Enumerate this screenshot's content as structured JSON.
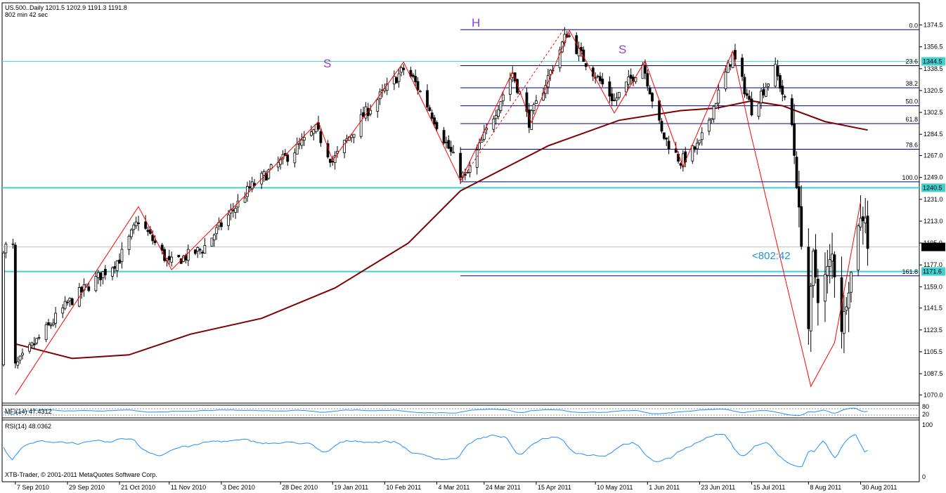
{
  "header": {
    "symbol_line": "US.500..Daily  1201.5 1202.9 1191.3 1191.8",
    "timer_line": "802 min 42 sec"
  },
  "footer": {
    "copyright": "XTB-Trader, © 2001-2011 MetaQuotes Software Corp."
  },
  "countdown": "<802:42",
  "pattern_labels": [
    "S",
    "H",
    "S"
  ],
  "price_axis": {
    "ticks": [
      "1374.5",
      "1356.5",
      "1338.5",
      "1320.5",
      "1302.5",
      "1284.5",
      "1267.0",
      "1249.0",
      "1231.0",
      "1213.0",
      "1195.0",
      "1177.0",
      "1159.0",
      "1141.5",
      "1123.5",
      "1105.5",
      "1087.5",
      "1070.0"
    ],
    "current_price": "1191.8",
    "levels": [
      "1344.5",
      "1240.5",
      "1171.6"
    ]
  },
  "fib_labels": [
    "0.0",
    "23.6",
    "38.2",
    "50.0",
    "61.8",
    "78.6",
    "100.0",
    "161.8"
  ],
  "date_axis": [
    "7 Sep 2010",
    "29 Sep 2010",
    "21 Oct 2010",
    "11 Nov 2010",
    "3 Dec 2010",
    "28 Dec 2010",
    "19 Jan 2011",
    "10 Feb 2011",
    "4 Mar 2011",
    "24 Mar 2011",
    "15 Apr 2011",
    "10 May 2011",
    "1 Jun 2011",
    "23 Jun 2011",
    "15 Jul 2011",
    "8 Aug 2011",
    "30 Aug 2011"
  ],
  "mfi": {
    "label": "MFI(14) 47.4312",
    "ticks": [
      "80",
      "20"
    ]
  },
  "rsi": {
    "label": "RSI(14) 48.0362",
    "ticks": [
      "100",
      "0"
    ]
  },
  "colors": {
    "candle": "#000000",
    "ma": "#800000",
    "zigzag": "#ff0000",
    "level": "#40d0d0",
    "fib": "#000080",
    "pattern": "#9040d0",
    "indicator": "#1e90ff",
    "countdown": "#2090e0",
    "price_box": "#000000"
  },
  "chart_data": {
    "type": "candlestick",
    "series": [
      {
        "name": "US.500..Daily",
        "waypoints": [
          [
            "2010-09-07",
            1093
          ],
          [
            "2010-09-29",
            1145
          ],
          [
            "2010-10-21",
            1182
          ],
          [
            "2010-10-29",
            1214
          ],
          [
            "2010-11-11",
            1178
          ],
          [
            "2010-11-25",
            1190
          ],
          [
            "2010-12-15",
            1240
          ],
          [
            "2011-01-05",
            1275
          ],
          [
            "2011-01-12",
            1288
          ],
          [
            "2011-01-19",
            1262
          ],
          [
            "2011-02-01",
            1300
          ],
          [
            "2011-02-18",
            1338
          ],
          [
            "2011-02-22",
            1330
          ],
          [
            "2011-03-01",
            1305
          ],
          [
            "2011-03-14",
            1253
          ],
          [
            "2011-03-16",
            1248
          ],
          [
            "2011-04-05",
            1335
          ],
          [
            "2011-04-12",
            1295
          ],
          [
            "2011-04-28",
            1368
          ],
          [
            "2011-05-03",
            1352
          ],
          [
            "2011-05-18",
            1312
          ],
          [
            "2011-05-30",
            1343
          ],
          [
            "2011-06-07",
            1285
          ],
          [
            "2011-06-15",
            1262
          ],
          [
            "2011-06-23",
            1276
          ],
          [
            "2011-07-07",
            1350
          ],
          [
            "2011-07-12",
            1322
          ],
          [
            "2011-07-15",
            1305
          ],
          [
            "2011-07-25",
            1338
          ],
          [
            "2011-08-01",
            1292
          ],
          [
            "2011-08-08",
            1125
          ],
          [
            "2011-08-10",
            1185
          ],
          [
            "2011-08-12",
            1150
          ],
          [
            "2011-08-18",
            1185
          ],
          [
            "2011-08-22",
            1125
          ],
          [
            "2011-08-26",
            1170
          ],
          [
            "2011-08-29",
            1212
          ],
          [
            "2011-09-01",
            1218
          ],
          [
            "2011-09-02",
            1191.8
          ]
        ]
      }
    ],
    "moving_average": [
      [
        "2010-09-07",
        1112
      ],
      [
        "2010-10-01",
        1100
      ],
      [
        "2010-10-25",
        1103
      ],
      [
        "2010-11-20",
        1120
      ],
      [
        "2010-12-20",
        1133
      ],
      [
        "2011-01-20",
        1158
      ],
      [
        "2011-02-20",
        1195
      ],
      [
        "2011-03-14",
        1238
      ],
      [
        "2011-04-20",
        1275
      ],
      [
        "2011-05-20",
        1296
      ],
      [
        "2011-06-15",
        1304
      ],
      [
        "2011-06-30",
        1306
      ],
      [
        "2011-07-15",
        1312
      ],
      [
        "2011-07-28",
        1308
      ],
      [
        "2011-08-15",
        1295
      ],
      [
        "2011-09-02",
        1288
      ]
    ],
    "zigzag": [
      [
        "2010-09-07",
        1070
      ],
      [
        "2010-10-29",
        1225
      ],
      [
        "2010-11-12",
        1173
      ],
      [
        "2011-01-13",
        1295
      ],
      [
        "2011-01-19",
        1263
      ],
      [
        "2011-02-18",
        1344
      ],
      [
        "2011-03-14",
        1246
      ],
      [
        "2011-04-05",
        1336
      ],
      [
        "2011-04-13",
        1294
      ],
      [
        "2011-04-29",
        1370
      ],
      [
        "2011-05-18",
        1302
      ],
      [
        "2011-05-31",
        1345
      ],
      [
        "2011-06-16",
        1258
      ],
      [
        "2011-07-07",
        1353
      ],
      [
        "2011-07-14",
        1290
      ],
      [
        "2011-08-09",
        1077
      ],
      [
        "2011-08-19",
        1113
      ],
      [
        "2011-08-30",
        1229
      ]
    ],
    "dashed_trend": [
      [
        "2011-03-14",
        1246
      ],
      [
        "2011-04-27",
        1372
      ]
    ],
    "fib_levels": [
      {
        "label": "0.0",
        "value": 1370.6
      },
      {
        "label": "23.6",
        "value": 1341.0
      },
      {
        "label": "38.2",
        "value": 1322.8
      },
      {
        "label": "50.0",
        "value": 1308.0
      },
      {
        "label": "61.8",
        "value": 1293.3
      },
      {
        "label": "78.6",
        "value": 1272.2
      },
      {
        "label": "100.0",
        "value": 1245.4
      },
      {
        "label": "161.8",
        "value": 1168.0
      }
    ],
    "horizontal_levels": [
      1344.5,
      1240.5,
      1171.6
    ],
    "current_price": 1191.8,
    "ylim": [
      1065,
      1380
    ],
    "xlim": [
      "2010-09-02",
      "2011-09-14"
    ],
    "indicators": [
      {
        "name": "MFI(14)",
        "last": 47.4312,
        "levels": [
          80,
          20
        ]
      },
      {
        "name": "RSI(14)",
        "last": 48.0362,
        "range": [
          0,
          100
        ]
      }
    ]
  }
}
